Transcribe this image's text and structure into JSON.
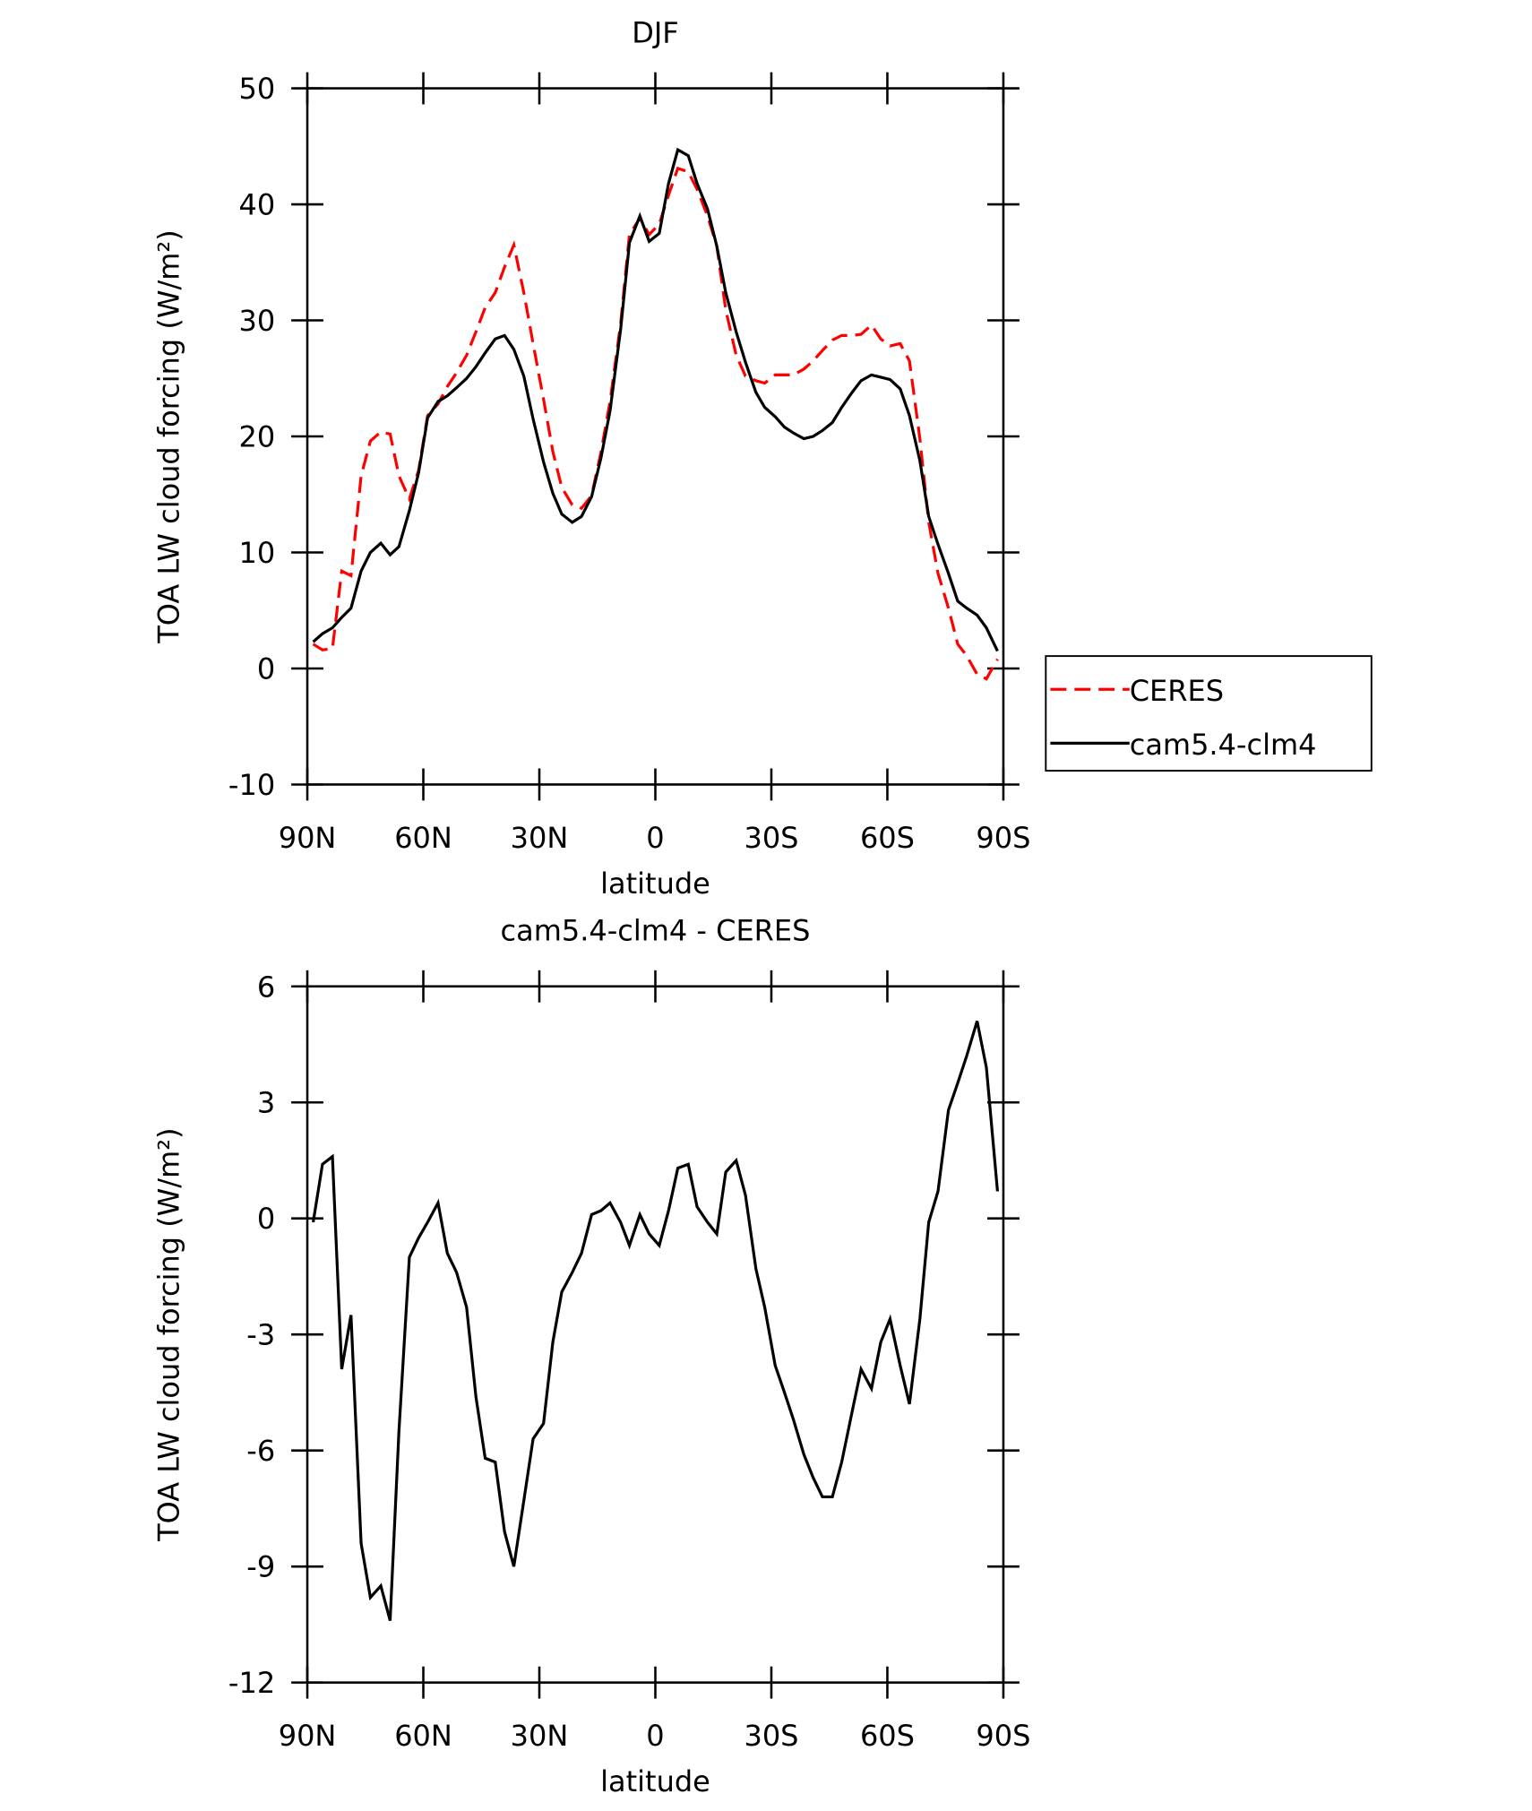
{
  "chart_data": [
    {
      "type": "line",
      "title": "DJF",
      "xlabel": "latitude",
      "ylabel": "TOA LW cloud forcing (W/m²)",
      "x": [
        88.5,
        86.1,
        83.5,
        81.1,
        78.7,
        76.1,
        73.7,
        71.0,
        68.6,
        66.3,
        63.6,
        61.2,
        58.9,
        56.2,
        53.8,
        51.4,
        48.8,
        46.4,
        44.0,
        41.4,
        39.0,
        36.6,
        34.0,
        31.6,
        28.9,
        26.5,
        24.2,
        21.5,
        19.1,
        16.5,
        14.1,
        11.7,
        9.0,
        6.7,
        4.0,
        1.6,
        -1.0,
        -3.4,
        -5.8,
        -8.5,
        -10.8,
        -13.5,
        -15.9,
        -18.2,
        -20.9,
        -23.3,
        -26.0,
        -28.3,
        -31.0,
        -33.4,
        -35.7,
        -38.4,
        -40.8,
        -43.2,
        -45.8,
        -48.2,
        -50.9,
        -53.2,
        -55.9,
        -58.3,
        -60.7,
        -63.3,
        -65.7,
        -68.4,
        -70.7,
        -73.1,
        -75.8,
        -78.2,
        -80.5,
        -83.2,
        -85.6,
        -88.5
      ],
      "series": [
        {
          "name": "CERES",
          "color": "#ff0000",
          "style": "dashed",
          "values": [
            2.1,
            1.6,
            1.7,
            8.4,
            8.0,
            16.6,
            19.6,
            20.4,
            20.2,
            16.6,
            14.6,
            17.1,
            21.8,
            22.8,
            24.3,
            25.5,
            27.0,
            29.0,
            31.1,
            32.4,
            34.6,
            36.5,
            32.4,
            28.0,
            23.2,
            18.7,
            15.6,
            14.1,
            13.8,
            14.9,
            18.6,
            23.0,
            29.7,
            37.4,
            38.8,
            37.4,
            38.3,
            40.8,
            43.1,
            42.8,
            41.3,
            39.0,
            36.4,
            30.9,
            27.0,
            25.2,
            24.8,
            24.6,
            25.3,
            25.3,
            25.3,
            25.8,
            26.5,
            27.4,
            28.3,
            28.7,
            28.7,
            28.8,
            29.6,
            28.4,
            27.8,
            28.0,
            26.5,
            19.8,
            12.6,
            8.2,
            5.2,
            2.1,
            1.1,
            -0.5,
            -0.9,
            0.8
          ]
        },
        {
          "name": "cam5.4-clm4",
          "color": "#000000",
          "style": "solid",
          "values": [
            2.3,
            3.0,
            3.5,
            4.4,
            5.2,
            8.4,
            10.0,
            10.8,
            9.8,
            10.5,
            13.6,
            16.9,
            21.6,
            23.0,
            23.5,
            24.2,
            25.0,
            26.0,
            27.2,
            28.4,
            28.7,
            27.5,
            25.2,
            21.5,
            17.8,
            15.1,
            13.3,
            12.6,
            13.1,
            14.8,
            18.1,
            22.2,
            29.2,
            36.7,
            39.0,
            36.8,
            37.5,
            41.8,
            44.7,
            44.2,
            41.8,
            39.6,
            36.4,
            32.4,
            29.0,
            26.4,
            23.8,
            22.5,
            21.7,
            20.8,
            20.3,
            19.8,
            20.0,
            20.5,
            21.2,
            22.5,
            23.8,
            24.8,
            25.3,
            25.1,
            24.9,
            24.1,
            21.8,
            17.9,
            13.1,
            10.7,
            8.2,
            5.8,
            5.2,
            4.6,
            3.5,
            1.5
          ]
        }
      ],
      "xlim": [
        90,
        -90
      ],
      "xticks": [
        {
          "value": 90,
          "label": "90N"
        },
        {
          "value": 60,
          "label": "60N"
        },
        {
          "value": 30,
          "label": "30N"
        },
        0,
        {
          "value": -30,
          "label": "30S"
        },
        {
          "value": -60,
          "label": "60S"
        },
        {
          "value": -90,
          "label": "90S"
        }
      ],
      "ylim": [
        -10,
        50
      ],
      "yticks": [
        -10,
        0,
        10,
        20,
        30,
        40,
        50
      ],
      "legend": "right"
    },
    {
      "type": "line",
      "title": "cam5.4-clm4 - CERES",
      "xlabel": "latitude",
      "ylabel": "TOA LW cloud forcing (W/m²)",
      "x": [
        88.5,
        86.1,
        83.5,
        81.1,
        78.7,
        76.1,
        73.7,
        71.0,
        68.6,
        66.3,
        63.6,
        61.2,
        58.9,
        56.2,
        53.8,
        51.4,
        48.8,
        46.4,
        44.0,
        41.4,
        39.0,
        36.6,
        34.0,
        31.6,
        28.9,
        26.5,
        24.2,
        21.5,
        19.1,
        16.5,
        14.1,
        11.7,
        9.0,
        6.7,
        4.0,
        1.6,
        -1.0,
        -3.4,
        -5.8,
        -8.5,
        -10.8,
        -13.5,
        -15.9,
        -18.2,
        -20.9,
        -23.3,
        -26.0,
        -28.3,
        -31.0,
        -33.4,
        -35.7,
        -38.4,
        -40.8,
        -43.2,
        -45.8,
        -48.2,
        -50.9,
        -53.2,
        -55.9,
        -58.3,
        -60.7,
        -63.3,
        -65.7,
        -68.4,
        -70.7,
        -73.1,
        -75.8,
        -78.2,
        -80.5,
        -83.2,
        -85.6,
        -88.5
      ],
      "values": [
        -0.1,
        1.4,
        1.6,
        -3.9,
        -2.5,
        -8.4,
        -9.8,
        -9.5,
        -10.4,
        -5.5,
        -1.0,
        -0.5,
        -0.1,
        0.4,
        -0.9,
        -1.4,
        -2.3,
        -4.6,
        -6.2,
        -6.3,
        -8.1,
        -9.0,
        -7.3,
        -5.7,
        -5.3,
        -3.2,
        -1.9,
        -1.4,
        -0.9,
        0.1,
        0.2,
        0.4,
        -0.1,
        -0.7,
        0.1,
        -0.4,
        -0.7,
        0.2,
        1.3,
        1.4,
        0.3,
        -0.1,
        -0.4,
        1.2,
        1.5,
        0.6,
        -1.3,
        -2.3,
        -3.8,
        -4.5,
        -5.2,
        -6.1,
        -6.7,
        -7.2,
        -7.2,
        -6.3,
        -5.0,
        -3.9,
        -4.4,
        -3.2,
        -2.6,
        -3.8,
        -4.8,
        -2.6,
        -0.1,
        0.7,
        2.8,
        3.5,
        4.2,
        5.1,
        3.9,
        0.7
      ],
      "color": "#000000",
      "xlim": [
        90,
        -90
      ],
      "xticks": [
        {
          "value": 90,
          "label": "90N"
        },
        {
          "value": 60,
          "label": "60N"
        },
        {
          "value": 30,
          "label": "30N"
        },
        0,
        {
          "value": -30,
          "label": "30S"
        },
        {
          "value": -60,
          "label": "60S"
        },
        {
          "value": -90,
          "label": "90S"
        }
      ],
      "ylim": [
        -12,
        6
      ],
      "yticks": [
        -12,
        -9,
        -6,
        -3,
        0,
        3,
        6
      ]
    }
  ]
}
